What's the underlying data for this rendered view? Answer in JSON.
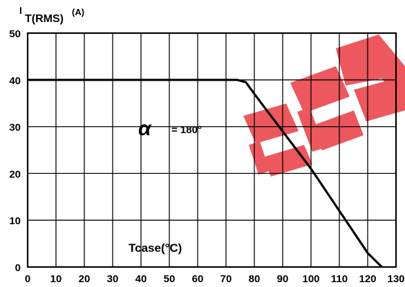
{
  "chart_data": {
    "type": "line",
    "ylabel_main": "I",
    "ylabel_sub": "T(RMS)",
    "ylabel_unit": "(A)",
    "xlabel": "Tcase(°C)",
    "annotation_symbol": "α",
    "annotation_value": "= 180°",
    "xlim": [
      0,
      130
    ],
    "ylim": [
      0,
      50
    ],
    "x_ticks": [
      0,
      10,
      20,
      30,
      40,
      50,
      60,
      70,
      80,
      90,
      100,
      110,
      120,
      130
    ],
    "y_ticks": [
      0,
      10,
      20,
      30,
      40,
      50
    ],
    "grid": true,
    "series": [
      {
        "x": [
          0,
          74,
          77,
          80,
          85,
          90,
          95,
          100,
          105,
          110,
          115,
          120,
          125
        ],
        "y": [
          40,
          40,
          39.5,
          37,
          33,
          29,
          25,
          21,
          16.5,
          12,
          7.5,
          3,
          0
        ]
      }
    ],
    "colors": {
      "line": "#000000",
      "grid": "#000000",
      "watermark": "#ea4148"
    },
    "watermark": "EEP"
  }
}
